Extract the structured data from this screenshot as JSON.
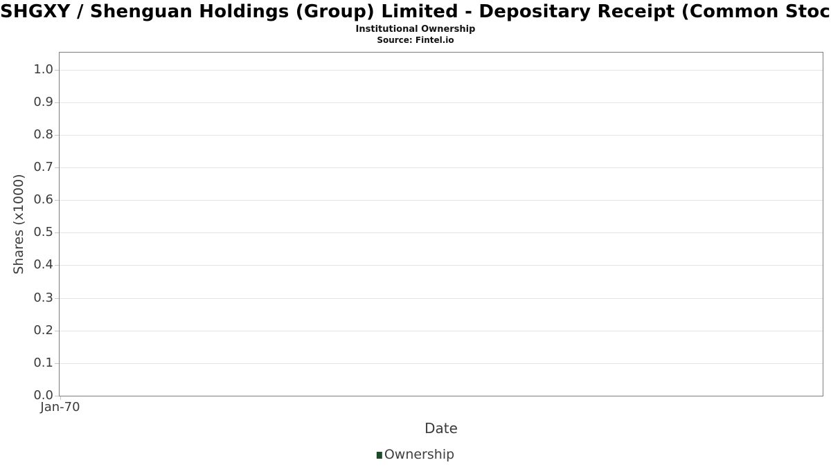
{
  "header": {
    "title": "SHGXY / Shenguan Holdings (Group) Limited - Depositary Receipt (Common Stock)",
    "subtitle": "Institutional Ownership",
    "source": "Source: Fintel.io"
  },
  "legend": {
    "items": [
      {
        "label": "Ownership",
        "color": "#1d4a28"
      }
    ]
  },
  "colors": {
    "grid": "#e3e3e3",
    "axis_border": "#7d7d7d",
    "tick_mark": "#c4c4c4",
    "axis_text": "#3a3a3a",
    "legend_marker": "#1d4a28"
  },
  "chart_data": {
    "type": "bar",
    "title": "SHGXY / Shenguan Holdings (Group) Limited - Depositary Receipt (Common Stock)",
    "subtitle": "Institutional Ownership",
    "source": "Source: Fintel.io",
    "xlabel": "Date",
    "ylabel": "Shares (x1000)",
    "x_tick_labels": [
      "Jan-70"
    ],
    "yticks": [
      0.0,
      0.1,
      0.2,
      0.3,
      0.4,
      0.5,
      0.6,
      0.7,
      0.8,
      0.9,
      1.0
    ],
    "ytick_labels": [
      "0.0",
      "0.1",
      "0.2",
      "0.3",
      "0.4",
      "0.5",
      "0.6",
      "0.7",
      "0.8",
      "0.9",
      "1.0"
    ],
    "ylim": [
      0.0,
      1.05
    ],
    "grid": true,
    "legend_position": "bottom-center",
    "series": [
      {
        "name": "Ownership",
        "color": "#1d4a28",
        "values": []
      }
    ]
  }
}
